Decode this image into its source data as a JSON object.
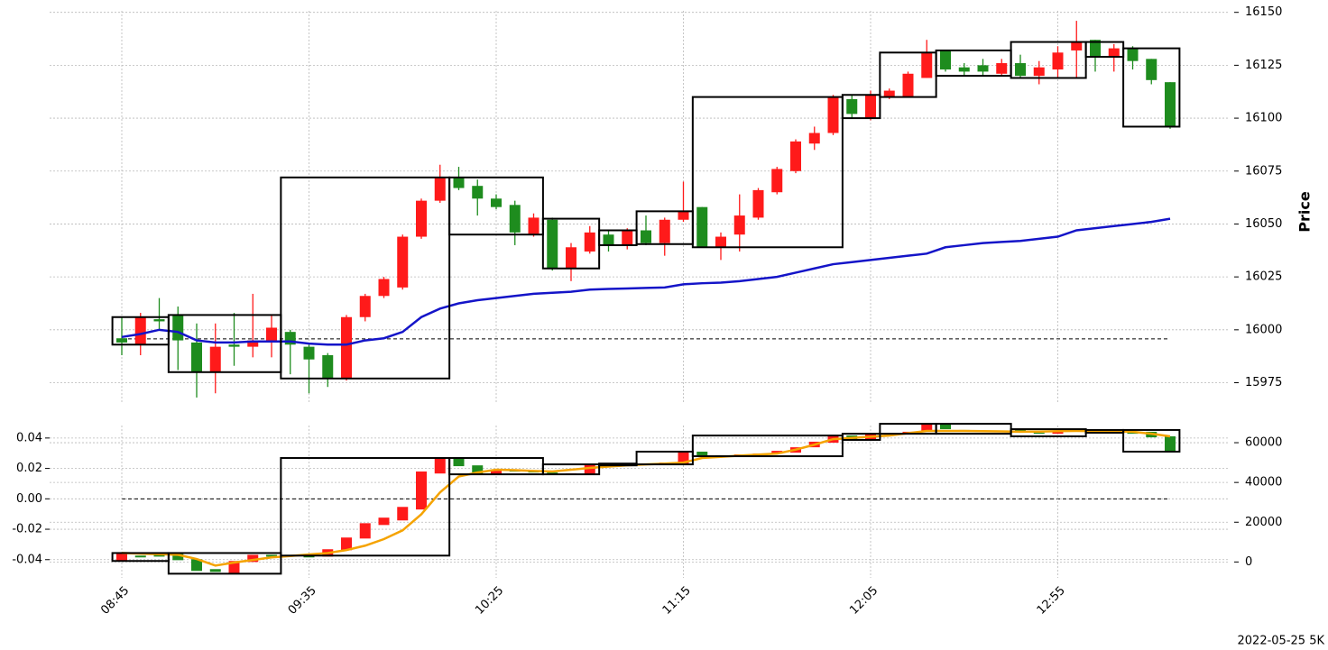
{
  "chart_data": [
    {
      "type": "candlestick",
      "ylabel": "Price",
      "up_color": "#ff1a1a",
      "down_color": "#1e8c1e",
      "grid": true,
      "open": [
        15996,
        15993,
        16005,
        16007,
        15994,
        15980,
        15993,
        15992,
        15995,
        15999,
        15992,
        15988,
        15977,
        16006,
        16016,
        16020,
        16044,
        16061,
        16072,
        16068,
        16062,
        16059,
        16045,
        16052,
        16029,
        16037,
        16045,
        16040,
        16047,
        16041,
        16052,
        16058,
        16039,
        16045,
        16053,
        16065,
        16075,
        16088,
        16093,
        16109,
        16100,
        16110,
        16110,
        16119,
        16132,
        16124,
        16125,
        16121,
        16126,
        16120,
        16123,
        16132,
        16137,
        16129,
        16133,
        16128,
        16117
      ],
      "high": [
        16006,
        16008,
        16015,
        16011,
        16003,
        16003,
        16008,
        16017,
        16007,
        16000,
        15993,
        15989,
        16007,
        16017,
        16025,
        16045,
        16062,
        16078,
        16077,
        16071,
        16064,
        16061,
        16055,
        16053,
        16041,
        16049,
        16047,
        16048,
        16054,
        16053,
        16070,
        16058,
        16046,
        16064,
        16067,
        16077,
        16090,
        16096,
        16111,
        16111,
        16113,
        16114,
        16122,
        16137,
        16132,
        16126,
        16128,
        16128,
        16130,
        16127,
        16134,
        16146,
        16137,
        16135,
        16134,
        16128,
        16117
      ],
      "low": [
        15988,
        15988,
        16000,
        15981,
        15968,
        15970,
        15983,
        15987,
        15987,
        15979,
        15970,
        15973,
        15976,
        16004,
        16015,
        16019,
        16043,
        16060,
        16066,
        16054,
        16057,
        16040,
        16044,
        16028,
        16023,
        16036,
        16037,
        16038,
        16040,
        16035,
        16051,
        16039,
        16033,
        16037,
        16052,
        16064,
        16074,
        16085,
        16092,
        16100,
        16099,
        16109,
        16110,
        16119,
        16122,
        16120,
        16120,
        16120,
        16119,
        16116,
        16119,
        16119,
        16122,
        16122,
        16123,
        16116,
        16095
      ],
      "close": [
        15994,
        16006,
        16004,
        15995,
        15980,
        15992,
        15992,
        15995,
        16001,
        15993,
        15986,
        15977,
        16006,
        16016,
        16024,
        16044,
        16061,
        16072,
        16067,
        16062,
        16058,
        16046,
        16053,
        16029,
        16039,
        16046,
        16040,
        16047,
        16041,
        16052,
        16056,
        16039,
        16044,
        16054,
        16066,
        16076,
        16089,
        16093,
        16110,
        16102,
        16111,
        16113,
        16121,
        16131,
        16123,
        16122,
        16122,
        16126,
        16120,
        16124,
        16131,
        16136,
        16129,
        16133,
        16127,
        16118,
        16096
      ],
      "ma": {
        "color": "#1414c8",
        "values": [
          15996.6,
          15998,
          16000,
          15999,
          15995,
          15994,
          15994,
          15994.5,
          15994.5,
          15994.5,
          15993.5,
          15993,
          15993,
          15995,
          15996,
          15999,
          16006,
          16010,
          16012.5,
          16014,
          16015,
          16016,
          16017,
          16017.5,
          16018,
          16019,
          16019.3,
          16019.5,
          16019.8,
          16020,
          16021.5,
          16022,
          16022.3,
          16023,
          16024,
          16025,
          16027,
          16029,
          16031,
          16032,
          16033,
          16034,
          16035,
          16036,
          16039,
          16040,
          16041,
          16041.5,
          16042,
          16043,
          16044,
          16047,
          16048,
          16049,
          16050,
          16051,
          16052.5
        ]
      },
      "boxes": [
        {
          "first": 0,
          "last": 2,
          "low": 15993,
          "high": 16006
        },
        {
          "first": 3,
          "last": 8,
          "low": 15980,
          "high": 16007
        },
        {
          "first": 9,
          "last": 17,
          "low": 15977,
          "high": 16072
        },
        {
          "first": 18,
          "last": 22,
          "low": 16045,
          "high": 16072
        },
        {
          "first": 23,
          "last": 25,
          "low": 16029,
          "high": 16052.5
        },
        {
          "first": 26,
          "last": 27,
          "low": 16040,
          "high": 16047
        },
        {
          "first": 28,
          "last": 30,
          "low": 16040.5,
          "high": 16056
        },
        {
          "first": 31,
          "last": 38,
          "low": 16039,
          "high": 16110
        },
        {
          "first": 39,
          "last": 40,
          "low": 16100,
          "high": 16111
        },
        {
          "first": 41,
          "last": 43,
          "low": 16110,
          "high": 16131
        },
        {
          "first": 44,
          "last": 47,
          "low": 16120,
          "high": 16132
        },
        {
          "first": 48,
          "last": 51,
          "low": 16119,
          "high": 16136
        },
        {
          "first": 52,
          "last": 53,
          "low": 16129,
          "high": 16136
        },
        {
          "first": 54,
          "last": 56,
          "low": 16096,
          "high": 16133
        }
      ],
      "reference_line": 15995.7,
      "ylim": [
        15965,
        16152
      ],
      "yticks": [
        15975,
        16000,
        16025,
        16050,
        16075,
        16100,
        16125,
        16150
      ]
    },
    {
      "type": "candlestick",
      "up_color": "#ff1a1a",
      "down_color": "#1e8c1e",
      "grid": true,
      "categories": [
        "08:45",
        null,
        null,
        null,
        null,
        null,
        null,
        null,
        null,
        null,
        "09:35",
        null,
        null,
        null,
        null,
        null,
        null,
        null,
        null,
        null,
        "10:25",
        null,
        null,
        null,
        null,
        null,
        null,
        null,
        null,
        null,
        "11:15",
        null,
        null,
        null,
        null,
        null,
        null,
        null,
        null,
        null,
        "12:05",
        null,
        null,
        null,
        null,
        null,
        null,
        null,
        null,
        null,
        "12:55",
        null,
        null,
        null,
        null,
        null,
        null
      ],
      "open": [
        500,
        3200,
        3600,
        4100,
        1400,
        -3600,
        -5900,
        0,
        3600,
        3600,
        3200,
        2700,
        5900,
        11800,
        18600,
        20900,
        26400,
        44500,
        52300,
        48600,
        44100,
        45900,
        45500,
        45000,
        44100,
        44100,
        49100,
        48600,
        49100,
        49500,
        49100,
        55500,
        53600,
        53200,
        54100,
        54500,
        55000,
        57700,
        60000,
        63600,
        61400,
        64100,
        64100,
        65500,
        69500,
        66400,
        66000,
        65500,
        66400,
        65000,
        64500,
        65900,
        66400,
        65000,
        65500,
        65500,
        63200
      ],
      "close": [
        4500,
        2300,
        2700,
        900,
        -4500,
        -5000,
        500,
        3600,
        2700,
        2700,
        2300,
        6400,
        12300,
        19500,
        22300,
        27700,
        45500,
        52300,
        48200,
        44100,
        45900,
        45500,
        45000,
        44100,
        44500,
        49100,
        48600,
        49100,
        49500,
        50000,
        55500,
        53600,
        53200,
        54100,
        54500,
        55900,
        57700,
        60500,
        63600,
        61400,
        64500,
        64500,
        65500,
        69500,
        66800,
        66000,
        65500,
        65900,
        65000,
        64500,
        65900,
        66800,
        65000,
        65500,
        64500,
        62700,
        55500
      ],
      "ma": {
        "color": "#f5a300",
        "values": [
          4500,
          4200,
          3900,
          3600,
          1500,
          -1800,
          -300,
          1000,
          2300,
          3000,
          3800,
          4500,
          6000,
          8200,
          11500,
          15900,
          24000,
          35000,
          43000,
          45000,
          46400,
          46200,
          45800,
          45500,
          46400,
          47300,
          48000,
          48600,
          49100,
          49500,
          50000,
          52300,
          52900,
          53500,
          54000,
          54500,
          56500,
          59000,
          61800,
          62400,
          63000,
          63600,
          64800,
          65900,
          65900,
          65900,
          65800,
          65700,
          65500,
          65600,
          65800,
          65900,
          65800,
          65700,
          65500,
          64500,
          63200
        ]
      },
      "boxes": [
        {
          "first": 0,
          "last": 2,
          "low": 500,
          "high": 4500
        },
        {
          "first": 3,
          "last": 8,
          "low": -5900,
          "high": 4500
        },
        {
          "first": 9,
          "last": 17,
          "low": 3200,
          "high": 52300
        },
        {
          "first": 18,
          "last": 22,
          "low": 44100,
          "high": 52300
        },
        {
          "first": 23,
          "last": 25,
          "low": 44100,
          "high": 49100
        },
        {
          "first": 26,
          "last": 27,
          "low": 48600,
          "high": 49500
        },
        {
          "first": 28,
          "last": 30,
          "low": 49100,
          "high": 55500
        },
        {
          "first": 31,
          "last": 38,
          "low": 53200,
          "high": 63600
        },
        {
          "first": 39,
          "last": 40,
          "low": 61400,
          "high": 64500
        },
        {
          "first": 41,
          "last": 43,
          "low": 64500,
          "high": 69500
        },
        {
          "first": 44,
          "last": 47,
          "low": 64500,
          "high": 69500
        },
        {
          "first": 48,
          "last": 51,
          "low": 63200,
          "high": 66800
        },
        {
          "first": 52,
          "last": 53,
          "low": 65000,
          "high": 66400
        },
        {
          "first": 54,
          "last": 56,
          "low": 55500,
          "high": 66400
        }
      ],
      "reference_line": 0,
      "ylim": [
        -8000,
        70000
      ],
      "yticks": [
        0,
        20000,
        40000,
        60000
      ],
      "y2lim": [
        -0.052,
        0.05
      ],
      "y2ticks": [
        -0.04,
        -0.02,
        {
          "value": 0,
          "label": "0.00"
        },
        0.02,
        0.04
      ]
    }
  ],
  "footer": "2022-05-25 5K"
}
